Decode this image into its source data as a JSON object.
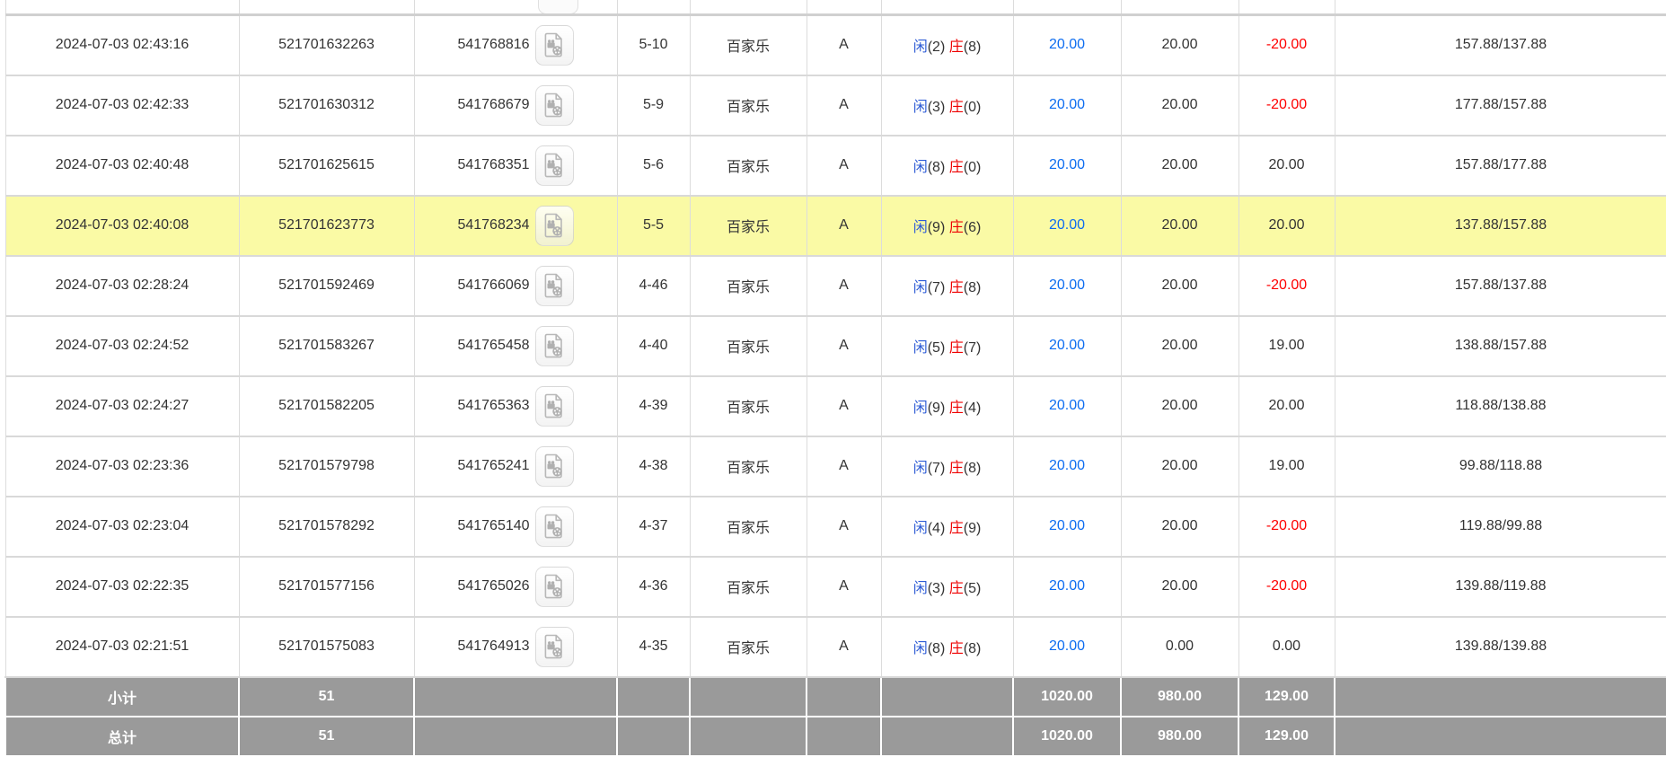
{
  "labels": {
    "player": "闲",
    "banker": "庄"
  },
  "colors": {
    "highlight_row": "#fafaa5",
    "totals_bg": "#9a9a9a",
    "totals_text": "#ffffff",
    "bet_link_blue": "#0c6cf0",
    "player_blue": "#2d5bd5",
    "banker_red": "#ee0000",
    "negative_red": "#fe0000",
    "body_text": "#333333",
    "border_gray": "#dcdcdc"
  },
  "icon": {
    "video": "video-file-icon"
  },
  "rows": [
    {
      "time": "2024-07-03 02:43:16",
      "bet_id": "521701632263",
      "round_id": "541768816",
      "round": "5-10",
      "game": "百家乐",
      "table": "A",
      "player_pts": "(2)",
      "banker_pts": "(8)",
      "bet": "20.00",
      "valid": "20.00",
      "win_loss": "-20.00",
      "balance": "157.88/137.88",
      "highlight": false
    },
    {
      "time": "2024-07-03 02:42:33",
      "bet_id": "521701630312",
      "round_id": "541768679",
      "round": "5-9",
      "game": "百家乐",
      "table": "A",
      "player_pts": "(3)",
      "banker_pts": "(0)",
      "bet": "20.00",
      "valid": "20.00",
      "win_loss": "-20.00",
      "balance": "177.88/157.88",
      "highlight": false
    },
    {
      "time": "2024-07-03 02:40:48",
      "bet_id": "521701625615",
      "round_id": "541768351",
      "round": "5-6",
      "game": "百家乐",
      "table": "A",
      "player_pts": "(8)",
      "banker_pts": "(0)",
      "bet": "20.00",
      "valid": "20.00",
      "win_loss": "20.00",
      "balance": "157.88/177.88",
      "highlight": false
    },
    {
      "time": "2024-07-03 02:40:08",
      "bet_id": "521701623773",
      "round_id": "541768234",
      "round": "5-5",
      "game": "百家乐",
      "table": "A",
      "player_pts": "(9)",
      "banker_pts": "(6)",
      "bet": "20.00",
      "valid": "20.00",
      "win_loss": "20.00",
      "balance": "137.88/157.88",
      "highlight": true
    },
    {
      "time": "2024-07-03 02:28:24",
      "bet_id": "521701592469",
      "round_id": "541766069",
      "round": "4-46",
      "game": "百家乐",
      "table": "A",
      "player_pts": "(7)",
      "banker_pts": "(8)",
      "bet": "20.00",
      "valid": "20.00",
      "win_loss": "-20.00",
      "balance": "157.88/137.88",
      "highlight": false
    },
    {
      "time": "2024-07-03 02:24:52",
      "bet_id": "521701583267",
      "round_id": "541765458",
      "round": "4-40",
      "game": "百家乐",
      "table": "A",
      "player_pts": "(5)",
      "banker_pts": "(7)",
      "bet": "20.00",
      "valid": "20.00",
      "win_loss": "19.00",
      "balance": "138.88/157.88",
      "highlight": false
    },
    {
      "time": "2024-07-03 02:24:27",
      "bet_id": "521701582205",
      "round_id": "541765363",
      "round": "4-39",
      "game": "百家乐",
      "table": "A",
      "player_pts": "(9)",
      "banker_pts": "(4)",
      "bet": "20.00",
      "valid": "20.00",
      "win_loss": "20.00",
      "balance": "118.88/138.88",
      "highlight": false
    },
    {
      "time": "2024-07-03 02:23:36",
      "bet_id": "521701579798",
      "round_id": "541765241",
      "round": "4-38",
      "game": "百家乐",
      "table": "A",
      "player_pts": "(7)",
      "banker_pts": "(8)",
      "bet": "20.00",
      "valid": "20.00",
      "win_loss": "19.00",
      "balance": "99.88/118.88",
      "highlight": false
    },
    {
      "time": "2024-07-03 02:23:04",
      "bet_id": "521701578292",
      "round_id": "541765140",
      "round": "4-37",
      "game": "百家乐",
      "table": "A",
      "player_pts": "(4)",
      "banker_pts": "(9)",
      "bet": "20.00",
      "valid": "20.00",
      "win_loss": "-20.00",
      "balance": "119.88/99.88",
      "highlight": false
    },
    {
      "time": "2024-07-03 02:22:35",
      "bet_id": "521701577156",
      "round_id": "541765026",
      "round": "4-36",
      "game": "百家乐",
      "table": "A",
      "player_pts": "(3)",
      "banker_pts": "(5)",
      "bet": "20.00",
      "valid": "20.00",
      "win_loss": "-20.00",
      "balance": "139.88/119.88",
      "highlight": false
    },
    {
      "time": "2024-07-03 02:21:51",
      "bet_id": "521701575083",
      "round_id": "541764913",
      "round": "4-35",
      "game": "百家乐",
      "table": "A",
      "player_pts": "(8)",
      "banker_pts": "(8)",
      "bet": "20.00",
      "valid": "0.00",
      "win_loss": "0.00",
      "balance": "139.88/139.88",
      "highlight": false
    }
  ],
  "totals": [
    {
      "label": "小计",
      "count": "51",
      "bet": "1020.00",
      "valid": "980.00",
      "win_loss": "129.00"
    },
    {
      "label": "总计",
      "count": "51",
      "bet": "1020.00",
      "valid": "980.00",
      "win_loss": "129.00"
    }
  ]
}
